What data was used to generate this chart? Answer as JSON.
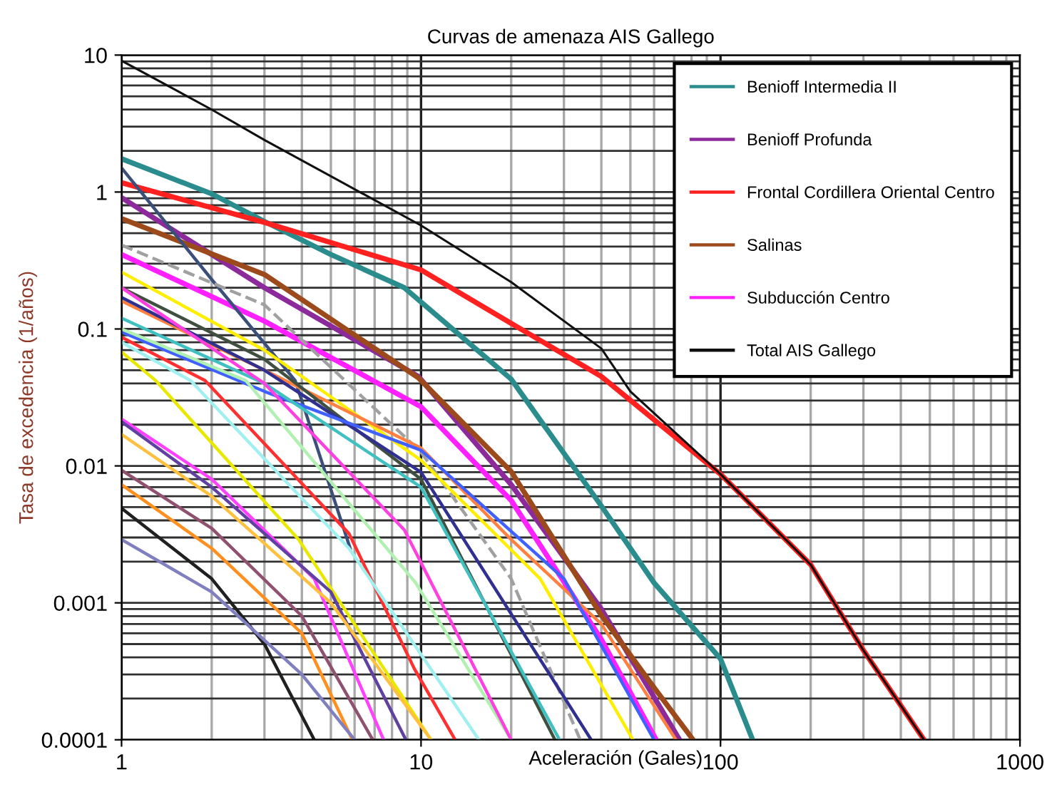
{
  "chart_data": {
    "type": "line",
    "title": "Curvas de amenaza AIS Gallego",
    "xlabel": "Aceleración (Gales)",
    "ylabel": "Tasa de excedencia (1/años)",
    "log": "xy",
    "xlim": [
      1,
      1000
    ],
    "ylim": [
      0.0001,
      10
    ],
    "xticks": [
      1,
      10,
      100,
      1000
    ],
    "yticks": [
      0.0001,
      0.001,
      0.01,
      0.1,
      1,
      10
    ],
    "grid": true,
    "legend": "top right",
    "marker": "none",
    "series": [
      {
        "name": "Benioff Intermedia II",
        "color": "#2a8c8c",
        "x": [
          1,
          2,
          3,
          5,
          8.8,
          20,
          40,
          60,
          100,
          128
        ],
        "values": [
          1.75,
          0.97,
          0.61,
          0.35,
          0.2,
          0.043,
          0.0051,
          0.0014,
          0.00039,
          0.0001
        ]
      },
      {
        "name": "Benioff Profunda",
        "color": "#8c2a9c",
        "x": [
          1,
          3,
          9.8,
          20,
          40,
          73
        ],
        "values": [
          0.91,
          0.2,
          0.045,
          0.0073,
          0.0009,
          0.0001
        ]
      },
      {
        "name": "Frontal Cordillera Oriental Centro",
        "color": "#ff2020",
        "x": [
          1,
          3,
          10,
          20,
          40,
          100,
          200,
          300,
          478
        ],
        "values": [
          1.17,
          0.6,
          0.27,
          0.11,
          0.045,
          0.0087,
          0.0019,
          0.00045,
          0.0001
        ]
      },
      {
        "name": "Salinas",
        "color": "#9c4a1c",
        "x": [
          1,
          3,
          9.8,
          20,
          40,
          60,
          81
        ],
        "values": [
          0.64,
          0.25,
          0.044,
          0.0091,
          0.00081,
          0.00024,
          0.0001
        ]
      },
      {
        "name": "Subducción Centro",
        "color": "#ff20ff",
        "x": [
          1,
          3,
          10,
          20,
          40,
          61
        ],
        "values": [
          0.35,
          0.114,
          0.027,
          0.0056,
          0.00054,
          0.0001
        ]
      },
      {
        "name": "Total AIS Gallego",
        "color": "#101010",
        "x": [
          1,
          2,
          3,
          10,
          20,
          40,
          50,
          100,
          200,
          300,
          478
        ],
        "values": [
          9.1,
          4,
          2.4,
          0.57,
          0.22,
          0.072,
          0.035,
          0.0087,
          0.0019,
          0.00045,
          0.0001
        ]
      },
      {
        "color": "#3b4f7a",
        "x": [
          1,
          2,
          3.8,
          5.8
        ],
        "values": [
          1.5,
          0.23,
          0.042,
          0.0025
        ]
      },
      {
        "color": "#a0a0a0",
        "line_style": "dashed",
        "x": [
          1,
          3,
          10,
          20,
          34
        ],
        "values": [
          0.41,
          0.15,
          0.0126,
          0.0015,
          0.0001
        ]
      },
      {
        "color": "#ffee00",
        "x": [
          1,
          3,
          10,
          25,
          51
        ],
        "values": [
          0.26,
          0.07,
          0.011,
          0.0015,
          0.0001
        ]
      },
      {
        "color": "#ff8040",
        "x": [
          1,
          3,
          10,
          20,
          40,
          71
        ],
        "values": [
          0.16,
          0.05,
          0.0135,
          0.0029,
          0.0007,
          0.0001
        ]
      },
      {
        "color": "#405040",
        "x": [
          1,
          3,
          10,
          28
        ],
        "values": [
          0.2,
          0.06,
          0.008,
          0.0001
        ]
      },
      {
        "color": "#303090",
        "x": [
          1,
          3,
          10,
          37
        ],
        "values": [
          0.17,
          0.05,
          0.009,
          0.0001
        ]
      },
      {
        "color": "#4060ff",
        "x": [
          1,
          3,
          10,
          30,
          60
        ],
        "values": [
          0.095,
          0.035,
          0.013,
          0.0015,
          0.0001
        ]
      },
      {
        "color": "#40c0c0",
        "x": [
          1,
          3,
          10,
          29
        ],
        "values": [
          0.12,
          0.04,
          0.007,
          0.0001
        ]
      },
      {
        "color": "#ff3030",
        "x": [
          1,
          1.9,
          5.75,
          9.5,
          13
        ],
        "values": [
          0.087,
          0.042,
          0.0032,
          0.00033,
          0.0001
        ]
      },
      {
        "color": "#e8e800",
        "x": [
          1,
          1.3,
          3.9,
          10.8
        ],
        "values": [
          0.068,
          0.042,
          0.0029,
          0.0001
        ]
      },
      {
        "color": "#a0f0f0",
        "x": [
          1,
          1.7,
          5.75,
          15.6
        ],
        "values": [
          0.08,
          0.042,
          0.0025,
          0.0001
        ]
      },
      {
        "color": "#b0f0b0",
        "x": [
          1,
          2.6,
          9.6,
          20
        ],
        "values": [
          0.1,
          0.042,
          0.0014,
          0.0001
        ]
      },
      {
        "color": "#ff40e0",
        "x": [
          1,
          3,
          8.8,
          20
        ],
        "values": [
          0.2,
          0.04,
          0.0034,
          0.0001
        ]
      },
      {
        "color": "#ff40ff",
        "x": [
          1,
          2,
          4.4,
          7.5
        ],
        "values": [
          0.022,
          0.008,
          0.0015,
          0.0001
        ]
      },
      {
        "color": "#6040a0",
        "x": [
          1,
          2,
          5,
          8.9
        ],
        "values": [
          0.021,
          0.007,
          0.0012,
          0.0001
        ]
      },
      {
        "color": "#ffc040",
        "x": [
          1,
          2,
          5,
          10.8
        ],
        "values": [
          0.017,
          0.006,
          0.001,
          0.0001
        ]
      },
      {
        "color": "#905070",
        "x": [
          1,
          2,
          4,
          6.9
        ],
        "values": [
          0.0093,
          0.0035,
          0.0008,
          0.0001
        ]
      },
      {
        "color": "#ff9020",
        "x": [
          1,
          2,
          4,
          5.9
        ],
        "values": [
          0.0073,
          0.0025,
          0.0006,
          0.0001
        ]
      },
      {
        "color": "#202020",
        "x": [
          1,
          2,
          3,
          4.4
        ],
        "values": [
          0.0049,
          0.0015,
          0.0005,
          0.0001
        ]
      },
      {
        "color": "#8080c0",
        "x": [
          1,
          2,
          4,
          6
        ],
        "values": [
          0.0029,
          0.0012,
          0.0003,
          0.0001
        ]
      }
    ]
  }
}
